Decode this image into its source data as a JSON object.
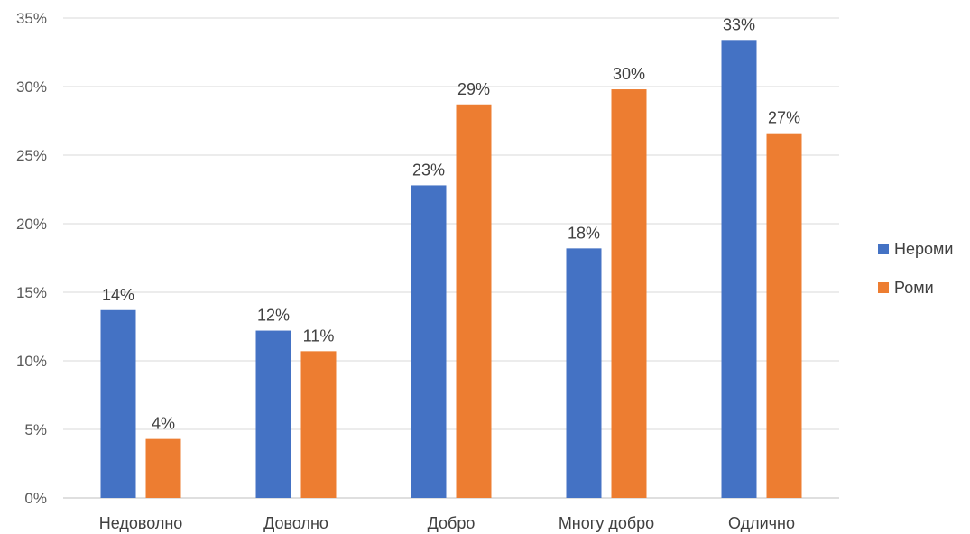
{
  "chart_data": {
    "type": "bar",
    "categories": [
      "Недоволно",
      "Доволно",
      "Добро",
      "Многу добро",
      "Одлично"
    ],
    "series": [
      {
        "name": "Нероми",
        "values": [
          13.7,
          12.2,
          22.8,
          18.2,
          33.4
        ],
        "labels": [
          "14%",
          "12%",
          "23%",
          "18%",
          "33%"
        ],
        "color": "#4472C4"
      },
      {
        "name": "Роми",
        "values": [
          4.3,
          10.7,
          28.7,
          29.8,
          26.6
        ],
        "labels": [
          "4%",
          "11%",
          "29%",
          "30%",
          "27%"
        ],
        "color": "#ED7D31"
      }
    ],
    "ylim": [
      0,
      35
    ],
    "yticks": [
      0,
      5,
      10,
      15,
      20,
      25,
      30,
      35
    ],
    "ytick_labels": [
      "0%",
      "5%",
      "10%",
      "15%",
      "20%",
      "25%",
      "30%",
      "35%"
    ],
    "grid": true,
    "legend_position": "right",
    "title": "",
    "xlabel": "",
    "ylabel": ""
  }
}
